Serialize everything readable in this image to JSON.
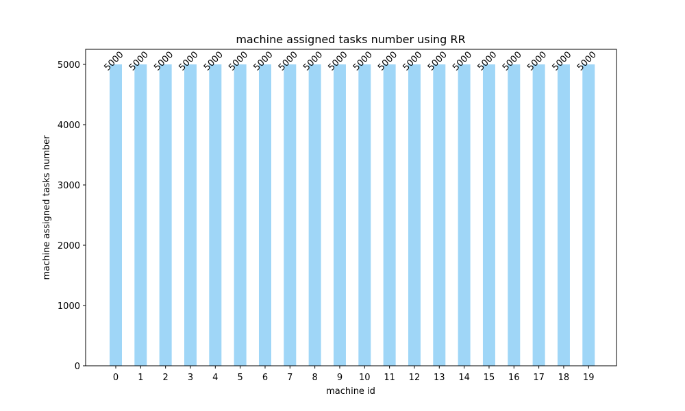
{
  "chart_data": {
    "type": "bar",
    "title": "machine assigned tasks number using RR",
    "xlabel": "machine id",
    "ylabel": "machine assigned tasks number",
    "categories": [
      "0",
      "1",
      "2",
      "3",
      "4",
      "5",
      "6",
      "7",
      "8",
      "9",
      "10",
      "11",
      "12",
      "13",
      "14",
      "15",
      "16",
      "17",
      "18",
      "19"
    ],
    "values": [
      5000,
      5000,
      5000,
      5000,
      5000,
      5000,
      5000,
      5000,
      5000,
      5000,
      5000,
      5000,
      5000,
      5000,
      5000,
      5000,
      5000,
      5000,
      5000,
      5000
    ],
    "data_labels": [
      "5000",
      "5000",
      "5000",
      "5000",
      "5000",
      "5000",
      "5000",
      "5000",
      "5000",
      "5000",
      "5000",
      "5000",
      "5000",
      "5000",
      "5000",
      "5000",
      "5000",
      "5000",
      "5000",
      "5000"
    ],
    "yticks": [
      0,
      1000,
      2000,
      3000,
      4000,
      5000
    ],
    "ylim": [
      0,
      5250
    ],
    "grid": false,
    "legend": "none",
    "bar_color": "#9fd6f7"
  }
}
